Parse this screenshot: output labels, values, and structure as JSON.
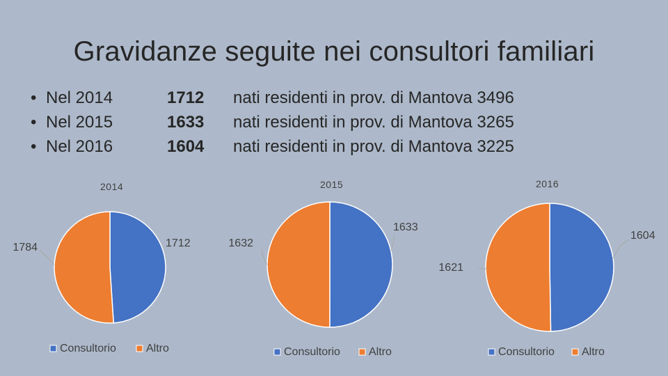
{
  "title": "Gravidanze seguite nei consultori familiari",
  "rows": [
    {
      "year_text": "Nel 2014",
      "value": "1712",
      "nati": "nati residenti in prov. di Mantova 3496"
    },
    {
      "year_text": "Nel 2015",
      "value": "1633",
      "nati": "nati residenti in prov. di Mantova 3265"
    },
    {
      "year_text": "Nel 2016",
      "value": "1604",
      "nati": "nati residenti in prov. di Mantova 3225"
    }
  ],
  "colors": {
    "consultorio": "#4472c4",
    "altro": "#ed7d31"
  },
  "chart_data": [
    {
      "type": "pie",
      "title": "2014",
      "categories": [
        "Consultorio",
        "Altro"
      ],
      "values": [
        1712,
        1784
      ],
      "legend": [
        "Consultorio",
        "Altro"
      ],
      "legend_position": "bottom"
    },
    {
      "type": "pie",
      "title": "2015",
      "categories": [
        "Consultorio",
        "Altro"
      ],
      "values": [
        1633,
        1632
      ],
      "legend": [
        "Consultorio",
        "Altro"
      ],
      "legend_position": "bottom"
    },
    {
      "type": "pie",
      "title": "2016",
      "categories": [
        "Consultorio",
        "Altro"
      ],
      "values": [
        1604,
        1621
      ],
      "legend": [
        "Consultorio",
        "Altro"
      ],
      "legend_position": "bottom"
    }
  ]
}
